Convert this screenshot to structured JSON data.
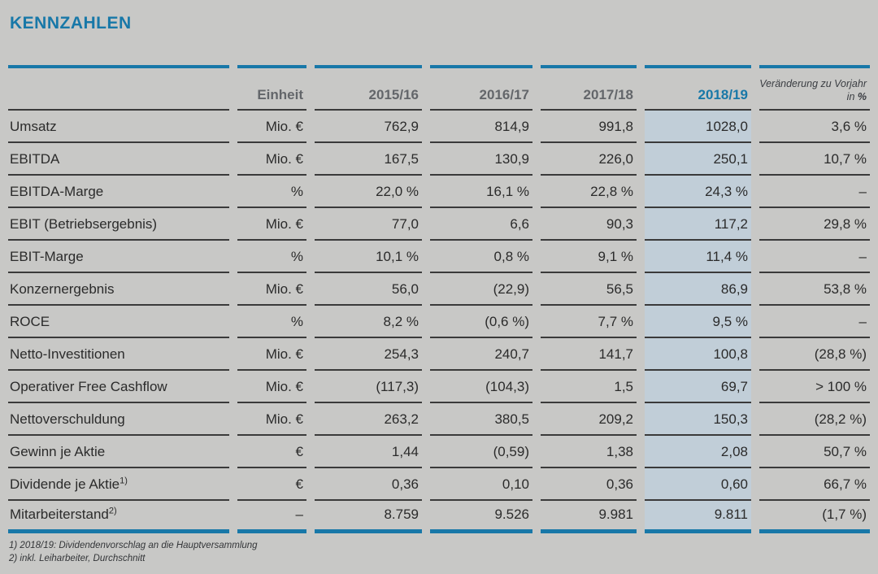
{
  "colors": {
    "accent_blue": "#1878a8",
    "highlight_column": "#c1ced8",
    "page_background": "#c8c8c6",
    "rule_dark": "#3a3a3a",
    "body_text": "#2b2b2b",
    "header_gray": "#63666a"
  },
  "page": {
    "title": "KENNZAHLEN"
  },
  "table": {
    "unit_header": "Einheit",
    "year_headers": [
      "2015/16",
      "2016/17",
      "2017/18",
      "2018/19"
    ],
    "highlight_year": "2018/19",
    "change_header": "Veränderung zu Vorjahr in %",
    "rows": [
      {
        "label": "Umsatz",
        "unit": "Mio. €",
        "values": [
          "762,9",
          "814,9",
          "991,8",
          "1028,0"
        ],
        "change": "3,6 %"
      },
      {
        "label": "EBITDA",
        "unit": "Mio. €",
        "values": [
          "167,5",
          "130,9",
          "226,0",
          "250,1"
        ],
        "change": "10,7 %"
      },
      {
        "label": "EBITDA-Marge",
        "unit": "%",
        "values": [
          "22,0 %",
          "16,1 %",
          "22,8 %",
          "24,3 %"
        ],
        "change": "–"
      },
      {
        "label": "EBIT (Betriebsergebnis)",
        "unit": "Mio. €",
        "values": [
          "77,0",
          "6,6",
          "90,3",
          "117,2"
        ],
        "change": "29,8 %"
      },
      {
        "label": "EBIT-Marge",
        "unit": "%",
        "values": [
          "10,1 %",
          "0,8 %",
          "9,1 %",
          "11,4 %"
        ],
        "change": "–"
      },
      {
        "label": "Konzernergebnis",
        "unit": "Mio. €",
        "values": [
          "56,0",
          "(22,9)",
          "56,5",
          "86,9"
        ],
        "change": "53,8 %"
      },
      {
        "label": "ROCE",
        "unit": "%",
        "values": [
          "8,2 %",
          "(0,6 %)",
          "7,7 %",
          "9,5 %"
        ],
        "change": "–"
      },
      {
        "label": "Netto-Investitionen",
        "unit": "Mio. €",
        "values": [
          "254,3",
          "240,7",
          "141,7",
          "100,8"
        ],
        "change": "(28,8 %)"
      },
      {
        "label": "Operativer Free Cashflow",
        "unit": "Mio. €",
        "values": [
          "(117,3)",
          "(104,3)",
          "1,5",
          "69,7"
        ],
        "change": "> 100 %"
      },
      {
        "label": "Nettoverschuldung",
        "unit": "Mio. €",
        "values": [
          "263,2",
          "380,5",
          "209,2",
          "150,3"
        ],
        "change": "(28,2 %)"
      },
      {
        "label": "Gewinn je Aktie",
        "unit": "€",
        "values": [
          "1,44",
          "(0,59)",
          "1,38",
          "2,08"
        ],
        "change": "50,7 %"
      },
      {
        "label": "Dividende je Aktie",
        "label_sup": "1)",
        "unit": "€",
        "values": [
          "0,36",
          "0,10",
          "0,36",
          "0,60"
        ],
        "change": "66,7 %"
      },
      {
        "label": "Mitarbeiterstand",
        "label_sup": "2)",
        "unit": "–",
        "values": [
          "8.759",
          "9.526",
          "9.981",
          "9.811"
        ],
        "change": "(1,7 %)"
      }
    ]
  },
  "footnotes": [
    "1) 2018/19: Dividendenvorschlag an die Hauptversammlung",
    "2) inkl. Leiharbeiter, Durchschnitt"
  ]
}
